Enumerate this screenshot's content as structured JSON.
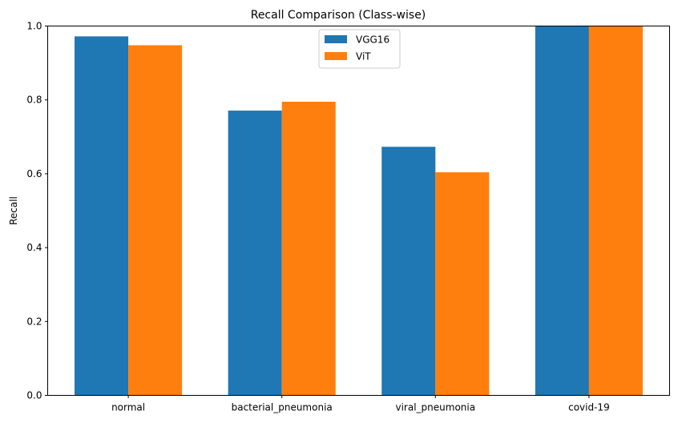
{
  "chart_data": {
    "type": "bar",
    "title": "Recall Comparison (Class-wise)",
    "xlabel": "",
    "ylabel": "Recall",
    "categories": [
      "normal",
      "bacterial_pneumonia",
      "viral_pneumonia",
      "covid-19"
    ],
    "series": [
      {
        "name": "VGG16",
        "color": "#1f77b4",
        "values": [
          0.972,
          0.771,
          0.673,
          1.0
        ]
      },
      {
        "name": "ViT",
        "color": "#ff7f0e",
        "values": [
          0.948,
          0.795,
          0.604,
          1.0
        ]
      }
    ],
    "ylim": [
      0,
      1.0
    ],
    "yticks": [
      "0.0",
      "0.2",
      "0.4",
      "0.6",
      "0.8",
      "1.0"
    ],
    "grid": false,
    "legend_position": "top-center"
  }
}
